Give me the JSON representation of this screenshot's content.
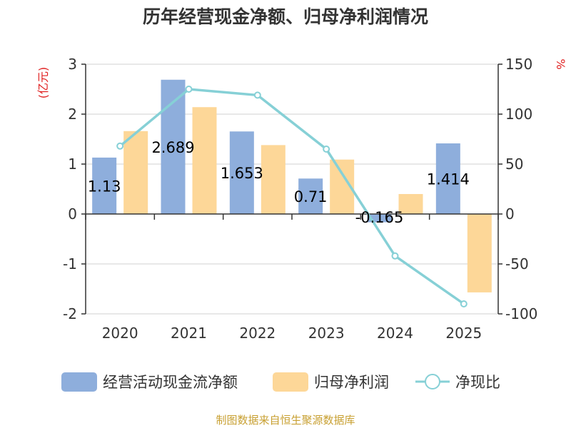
{
  "chart_data": {
    "type": "bar",
    "title": "历年经营现金净额、归母净利润情况",
    "categories": [
      "2020",
      "2021",
      "2022",
      "2023",
      "2024",
      "2025"
    ],
    "series": [
      {
        "name": "经营活动现金流净额",
        "type": "bar",
        "axis": "left",
        "color": "#8eaedc",
        "values": [
          1.13,
          2.689,
          1.653,
          0.71,
          -0.165,
          1.414
        ],
        "labels": [
          "1.13",
          "2.689",
          "1.653",
          "0.71",
          "-0.165",
          "1.414"
        ]
      },
      {
        "name": "归母净利润",
        "type": "bar",
        "axis": "left",
        "color": "#fdd798",
        "values": [
          1.66,
          2.14,
          1.38,
          1.09,
          0.4,
          -1.57
        ]
      },
      {
        "name": "净现比",
        "type": "line",
        "axis": "right",
        "color": "#86d0d6",
        "values": [
          68,
          125,
          119,
          65,
          -42,
          -90
        ]
      }
    ],
    "left_axis": {
      "unit": "(亿元)",
      "ylim": [
        -2,
        3
      ],
      "ticks": [
        "3",
        "2",
        "1",
        "0",
        "-1",
        "-2"
      ]
    },
    "right_axis": {
      "unit": "%",
      "ylim": [
        -100,
        150
      ],
      "ticks": [
        "150",
        "100",
        "50",
        "0",
        "-50",
        "-100"
      ]
    },
    "grid": true,
    "legend_position": "bottom"
  },
  "source": "制图数据来自恒生聚源数据库",
  "colors": {
    "unit_label": "#e02020",
    "source_text": "#c8a032"
  }
}
